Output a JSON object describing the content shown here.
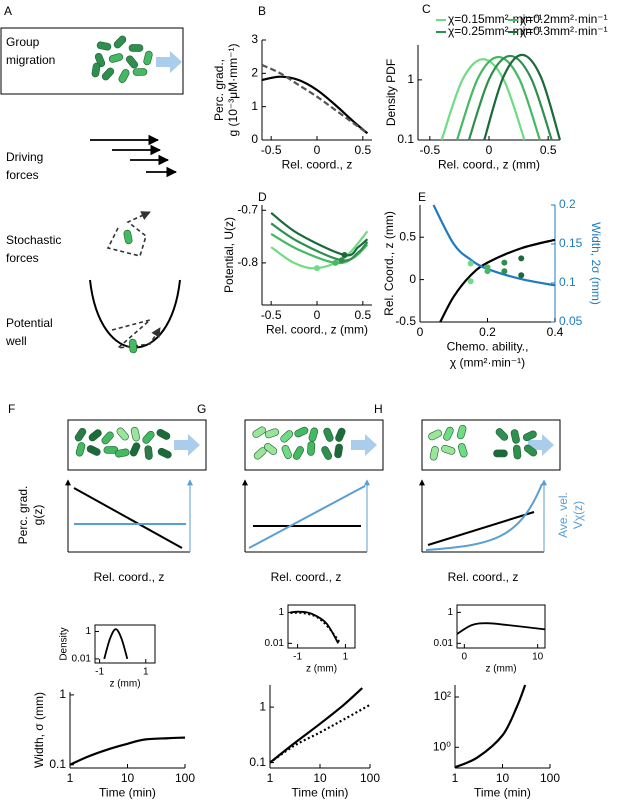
{
  "diagram": {
    "panel_a": {
      "label": "A",
      "items": [
        "Group migration",
        "Driving forces",
        "Stochastic forces",
        "Potential well"
      ]
    },
    "schematics": [
      {
        "label": "F",
        "ylabel": [
          "Perc. grad.",
          "g(z)"
        ],
        "xlabel": "Rel. coord., z"
      },
      {
        "label": "G",
        "xlabel": "Rel. coord., z"
      },
      {
        "label": "H",
        "xlabel": "Rel. coord., z",
        "y2label": [
          "Ave. vel.",
          "Vχ(z)"
        ]
      }
    ]
  },
  "chart_data": [
    {
      "type": "line",
      "panel": "B",
      "xlabel": "Rel. coord., z",
      "ylabel": [
        "Perc. grad.,",
        "g (10⁻³μM·mm⁻¹)"
      ],
      "xlim": [
        -0.6,
        0.6
      ],
      "xticks": [
        -0.5,
        0,
        0.5
      ],
      "ylim": [
        0,
        3
      ],
      "yticks": [
        0,
        1,
        2,
        3
      ],
      "series": [
        {
          "color": "#000000",
          "x": [
            -0.6,
            -0.4,
            -0.2,
            0,
            0.2,
            0.4,
            0.55
          ],
          "values": [
            1.8,
            1.9,
            1.8,
            1.5,
            1.05,
            0.55,
            0.2
          ]
        },
        {
          "color": "#555555",
          "dash": "dashed",
          "x": [
            -0.6,
            -0.4,
            -0.2,
            0,
            0.2,
            0.4,
            0.55
          ],
          "values": [
            2.25,
            2.0,
            1.65,
            1.3,
            0.9,
            0.5,
            0.2
          ]
        }
      ]
    },
    {
      "type": "line",
      "panel": "C",
      "xlabel": "Rel. coord., z (mm)",
      "ylabel": [
        "Density PDF"
      ],
      "ylog": true,
      "legend": "top",
      "xlim": [
        -0.6,
        0.6
      ],
      "xticks": [
        -0.5,
        0,
        0.5
      ],
      "ylim": [
        0.1,
        3.8
      ],
      "yticks": [
        0.1,
        1
      ],
      "series": [
        {
          "name": "χ=0.15mm²·min⁻¹",
          "color": "#6fdc84",
          "x": [
            -0.4,
            -0.225,
            -0.05,
            0.125,
            0.3
          ],
          "values": [
            0.1,
            1.0,
            2.2,
            1.0,
            0.1
          ]
        },
        {
          "name": "χ=0.2mm²·min⁻¹",
          "color": "#45b862",
          "x": [
            -0.27,
            -0.095,
            0.08,
            0.255,
            0.43
          ],
          "values": [
            0.1,
            1.05,
            2.4,
            1.05,
            0.1
          ]
        },
        {
          "name": "χ=0.25mm²·min⁻¹",
          "color": "#2f8f4e",
          "x": [
            -0.17,
            0.005,
            0.18,
            0.355,
            0.53
          ],
          "values": [
            0.1,
            1.07,
            2.5,
            1.07,
            0.1
          ]
        },
        {
          "name": "χ=0.3mm²·min⁻¹",
          "color": "#1c6a3a",
          "x": [
            -0.04,
            0.12,
            0.28,
            0.44,
            0.6
          ],
          "values": [
            0.1,
            1.1,
            2.6,
            1.1,
            0.1
          ]
        }
      ]
    },
    {
      "type": "line",
      "panel": "D",
      "xlabel": "Rel. coord., z (mm)",
      "ylabel": [
        "Potential, U(z)"
      ],
      "xlim": [
        -0.6,
        0.6
      ],
      "xticks": [
        -0.5,
        0,
        0.5
      ],
      "ylim": [
        -0.88,
        -0.69
      ],
      "yticks": [
        -0.7,
        -0.8
      ],
      "series": [
        {
          "color": "#6fdc84",
          "x": [
            -0.5,
            -0.25,
            0,
            0.3,
            0.55
          ],
          "values": [
            -0.77,
            -0.8,
            -0.81,
            -0.79,
            -0.74
          ]
        },
        {
          "color": "#45b862",
          "x": [
            -0.5,
            -0.2,
            0.2,
            0.4,
            0.55
          ],
          "values": [
            -0.745,
            -0.775,
            -0.8,
            -0.79,
            -0.765
          ]
        },
        {
          "color": "#2f8f4e",
          "x": [
            -0.5,
            -0.2,
            0.27,
            0.45,
            0.55
          ],
          "values": [
            -0.725,
            -0.76,
            -0.795,
            -0.78,
            -0.76
          ]
        },
        {
          "color": "#1c6a3a",
          "x": [
            -0.5,
            -0.2,
            0.3,
            0.45,
            0.55
          ],
          "values": [
            -0.705,
            -0.745,
            -0.785,
            -0.77,
            -0.755
          ]
        },
        {
          "mode": "markers",
          "colors": [
            "#6fdc84",
            "#45b862",
            "#2f8f4e",
            "#1c6a3a"
          ],
          "x": [
            0,
            0.2,
            0.27,
            0.3
          ],
          "values": [
            -0.81,
            -0.8,
            -0.795,
            -0.785
          ]
        }
      ]
    },
    {
      "type": "line",
      "panel": "E",
      "xlabel": [
        "Chemo. ability.,",
        "χ (mm²·min⁻¹)"
      ],
      "ylabel": [
        "Rel. Coord., z (mm)"
      ],
      "y2label": [
        "Width, 2σ (mm)"
      ],
      "y2color": "#1f7bbf",
      "xlim": [
        0,
        0.4
      ],
      "xticks": [
        0,
        0.2,
        0.4
      ],
      "ylim": [
        -0.5,
        0.88
      ],
      "yticks": [
        -0.5,
        0,
        0.5
      ],
      "y2lim": [
        0.05,
        0.2
      ],
      "y2ticks": [
        0.05,
        0.1,
        0.15,
        0.2
      ],
      "series": [
        {
          "color": "#000000",
          "x": [
            0.06,
            0.1,
            0.15,
            0.2,
            0.3,
            0.4
          ],
          "values": [
            -0.5,
            -0.2,
            0.05,
            0.2,
            0.37,
            0.47
          ]
        },
        {
          "color": "#1f7bbf",
          "axis": "y2",
          "x": [
            0.04,
            0.1,
            0.15,
            0.2,
            0.3,
            0.4
          ],
          "values": [
            0.2,
            0.15,
            0.13,
            0.118,
            0.105,
            0.097
          ]
        },
        {
          "mode": "markers",
          "colors": [
            "#6fdc84",
            "#45b862",
            "#2f8f4e",
            "#1c6a3a"
          ],
          "x": [
            0.15,
            0.2,
            0.25,
            0.3
          ],
          "values": [
            -0.02,
            0.1,
            0.2,
            0.25
          ]
        },
        {
          "mode": "markers",
          "axis": "y2",
          "colors": [
            "#6fdc84",
            "#45b862",
            "#2f8f4e",
            "#1c6a3a"
          ],
          "x": [
            0.15,
            0.2,
            0.25,
            0.3
          ],
          "values": [
            0.125,
            0.12,
            0.115,
            0.11
          ]
        }
      ]
    },
    {
      "type": "line",
      "inset": true,
      "frame": true,
      "xlabel": "z (mm)",
      "ylabel": [
        "Density"
      ],
      "ylog": true,
      "xlim": [
        -1.2,
        1.4
      ],
      "xticks": [
        -1,
        1
      ],
      "ylim": [
        0.005,
        3
      ],
      "yticks": [
        0.01,
        1
      ],
      "series": [
        {
          "color": "#000000",
          "x": [
            -0.8,
            -0.55,
            -0.3,
            -0.05,
            0.2
          ],
          "values": [
            0.01,
            0.3,
            1.5,
            0.3,
            0.01
          ]
        }
      ]
    },
    {
      "type": "line",
      "xlabel": "Time (min)",
      "ylabel": [
        "Width, σ (mm)"
      ],
      "xlog": true,
      "ylog": true,
      "xlim": [
        1,
        100
      ],
      "xticks": [
        1,
        10,
        100
      ],
      "ylim": [
        0.09,
        1.1
      ],
      "yticks": [
        0.1,
        1
      ],
      "series": [
        {
          "color": "#000000",
          "x": [
            1,
            2,
            5,
            10,
            20,
            50,
            100
          ],
          "values": [
            0.1,
            0.13,
            0.17,
            0.2,
            0.23,
            0.24,
            0.245
          ]
        }
      ]
    },
    {
      "type": "line",
      "inset": true,
      "frame": true,
      "xlabel": "z (mm)",
      "ylog": true,
      "xlim": [
        -1.4,
        1.4
      ],
      "xticks": [
        -1,
        1
      ],
      "ylim": [
        0.005,
        3
      ],
      "yticks": [
        0.01,
        1
      ],
      "series": [
        {
          "color": "#000000",
          "x": [
            -1.3,
            -0.9,
            -0.4,
            0.2,
            0.7
          ],
          "values": [
            1,
            1.1,
            0.8,
            0.2,
            0.01
          ]
        },
        {
          "color": "#000000",
          "dash": "dotted",
          "x": [
            -1.3,
            -0.8,
            -0.2,
            0.3,
            0.8
          ],
          "values": [
            0.9,
            0.9,
            0.5,
            0.1,
            0.01
          ]
        }
      ]
    },
    {
      "type": "line",
      "xlabel": "Time (min)",
      "xlog": true,
      "ylog": true,
      "xlim": [
        1,
        100
      ],
      "xticks": [
        1,
        10,
        100
      ],
      "ylim": [
        0.08,
        2.5
      ],
      "yticks": [
        0.1,
        1
      ],
      "series": [
        {
          "color": "#000000",
          "x": [
            1,
            3,
            10,
            30,
            70
          ],
          "values": [
            0.1,
            0.22,
            0.5,
            1.1,
            2.2
          ]
        },
        {
          "color": "#000000",
          "dash": "dotted",
          "x": [
            1,
            3,
            10,
            30,
            100
          ],
          "values": [
            0.1,
            0.2,
            0.35,
            0.6,
            1.1
          ]
        }
      ]
    },
    {
      "type": "line",
      "inset": true,
      "frame": true,
      "xlabel": "z (mm)",
      "ylog": true,
      "xlim": [
        -1,
        11
      ],
      "xticks": [
        0,
        10
      ],
      "ylim": [
        0.005,
        3
      ],
      "yticks": [
        0.01,
        1
      ],
      "series": [
        {
          "color": "#000000",
          "x": [
            -1,
            1,
            3,
            6,
            11
          ],
          "values": [
            0.04,
            0.15,
            0.2,
            0.15,
            0.08
          ]
        }
      ]
    },
    {
      "type": "line",
      "xlabel": "Time (min)",
      "xlog": true,
      "ylog": true,
      "xlim": [
        1,
        100
      ],
      "xticks": [
        1,
        10,
        100
      ],
      "ylim": [
        0.15,
        300
      ],
      "yticks": [
        {
          "value": 1,
          "label": "10⁰"
        },
        {
          "value": 100,
          "label": "10²"
        }
      ],
      "series": [
        {
          "color": "#000000",
          "x": [
            1,
            3,
            10,
            20,
            30
          ],
          "values": [
            0.16,
            0.4,
            3,
            40,
            300
          ]
        }
      ]
    }
  ]
}
